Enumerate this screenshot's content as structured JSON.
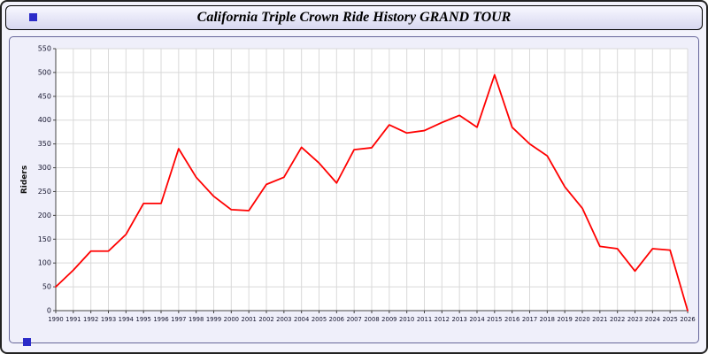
{
  "window": {
    "title": "California Triple Crown Ride History GRAND TOUR"
  },
  "decor": {
    "square_color": "#2b2bc8"
  },
  "chart_data": {
    "type": "line",
    "title": "California Triple Crown Ride History GRAND TOUR",
    "xlabel": "",
    "ylabel": "Riders",
    "ylim": [
      0,
      550
    ],
    "ytick_step": 50,
    "grid": true,
    "legend": "none",
    "plot_bg": "#ffffff",
    "grid_color": "#d9d9d9",
    "axis_color": "#444444",
    "tick_label_color": "#15152e",
    "x": [
      1990,
      1991,
      1992,
      1993,
      1994,
      1995,
      1996,
      1997,
      1998,
      1999,
      2000,
      2001,
      2002,
      2003,
      2004,
      2005,
      2006,
      2007,
      2008,
      2009,
      2010,
      2011,
      2012,
      2013,
      2014,
      2015,
      2016,
      2017,
      2018,
      2019,
      2020,
      2021,
      2022,
      2023,
      2024,
      2025,
      2026
    ],
    "series": [
      {
        "name": "Riders",
        "color": "#ff0000",
        "values": [
          50,
          85,
          125,
          125,
          160,
          225,
          225,
          340,
          280,
          240,
          212,
          210,
          265,
          280,
          343,
          310,
          268,
          338,
          342,
          390,
          373,
          378,
          395,
          410,
          385,
          495,
          385,
          350,
          325,
          260,
          215,
          135,
          130,
          83,
          130,
          127,
          0
        ]
      }
    ]
  }
}
